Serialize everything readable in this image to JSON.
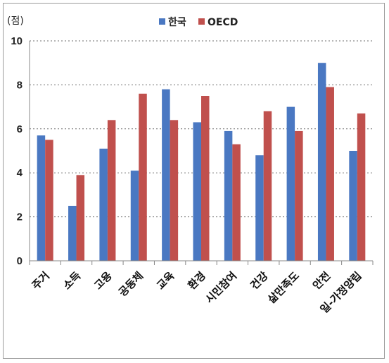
{
  "chart_data": {
    "type": "bar",
    "unit_label": "(점)",
    "categories": [
      "주거",
      "소득",
      "고용",
      "공동체",
      "교육",
      "환경",
      "시민참여",
      "건강",
      "삶만족도",
      "안전",
      "일-가정양립"
    ],
    "series": [
      {
        "name": "한국",
        "color": "#4a78c2",
        "values": [
          5.7,
          2.5,
          5.1,
          4.1,
          7.8,
          6.3,
          5.9,
          4.8,
          7.0,
          9.0,
          5.0
        ]
      },
      {
        "name": "OECD",
        "color": "#c0504d",
        "values": [
          5.5,
          3.9,
          6.4,
          7.6,
          6.4,
          7.5,
          5.3,
          6.8,
          5.9,
          7.9,
          6.7
        ]
      }
    ],
    "ylim": [
      0,
      10
    ],
    "yticks": [
      "0",
      "2",
      "4",
      "6",
      "8",
      "10"
    ],
    "grid": true,
    "legend_position": "top-center"
  }
}
